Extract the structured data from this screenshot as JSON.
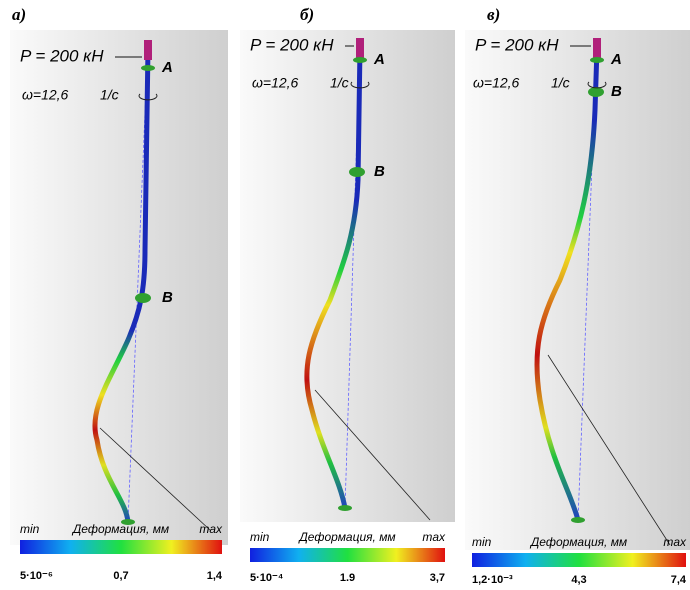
{
  "panels": [
    {
      "label": "а)",
      "load": "P = 200 кН",
      "omega": "ω=12,6",
      "omega_unit": "1/с",
      "point_a": "A",
      "point_b": "B",
      "legend": {
        "min": "min",
        "title": "Деформация, мм",
        "max": "max",
        "ticks": [
          "5·10⁻⁶",
          "0,7",
          "1,4"
        ]
      }
    },
    {
      "label": "б)",
      "load": "P = 200 кН",
      "omega": "ω=12,6",
      "omega_unit": "1/с",
      "point_a": "A",
      "point_b": "B",
      "legend": {
        "min": "min",
        "title": "Деформация, мм",
        "max": "max",
        "ticks": [
          "5·10⁻⁴",
          "1.9",
          "3,7"
        ]
      }
    },
    {
      "label": "в)",
      "load": "P = 200 кН",
      "omega": "ω=12,6",
      "omega_unit": "1/с",
      "point_a": "A",
      "point_b": "B",
      "legend": {
        "min": "min",
        "title": "Деформация, мм",
        "max": "max",
        "ticks": [
          "1,2·10⁻³",
          "4,3",
          "7,4"
        ]
      }
    }
  ]
}
